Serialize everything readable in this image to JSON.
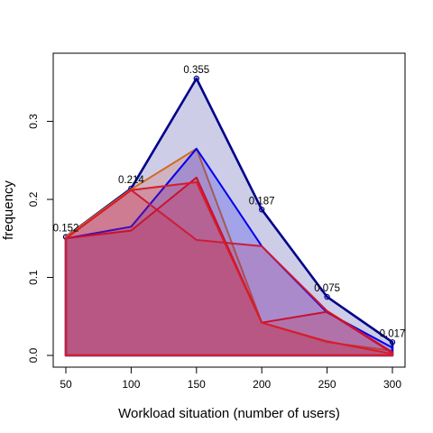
{
  "chart_data": {
    "type": "area",
    "title": "",
    "xlabel": "Workload situation (number of users)",
    "ylabel": "frequency",
    "xlim": [
      50,
      300
    ],
    "ylim": [
      0,
      0.355
    ],
    "x_ticks": [
      50,
      100,
      150,
      200,
      250,
      300
    ],
    "y_ticks": [
      0.0,
      0.1,
      0.2,
      0.3
    ],
    "y_tick_labels": [
      "0.0",
      "0.1",
      "0.2",
      "0.3"
    ],
    "grid": false,
    "legend": "none",
    "x": [
      50,
      100,
      150,
      200,
      250,
      300
    ],
    "series": [
      {
        "values": [
          0.152,
          0.214,
          0.355,
          0.187,
          0.075,
          0.017
        ],
        "labels": [
          "0.152",
          "0.214",
          "0.355",
          "0.187",
          "0.075",
          "0.017"
        ],
        "stroke": "#00008b",
        "fill": "rgba(90, 90, 175, 0.30)",
        "markers": true
      },
      {
        "values": [
          0.152,
          0.213,
          0.265,
          0.042,
          0.017,
          0.006
        ],
        "stroke": "#d2691e",
        "fill": "rgba(215, 105, 80, 0.25)",
        "markers": false
      },
      {
        "values": [
          0.15,
          0.165,
          0.265,
          0.14,
          0.055,
          0.01
        ],
        "stroke": "#0000ee",
        "fill": "rgba(40, 40, 245, 0.25)",
        "markers": false
      },
      {
        "values": [
          0.15,
          0.212,
          0.148,
          0.14,
          0.057,
          0.004
        ],
        "stroke": "#cd1a3a",
        "fill": "rgba(205, 30, 60, 0.18)",
        "markers": false
      },
      {
        "values": [
          0.15,
          0.16,
          0.228,
          0.042,
          0.056,
          0.003
        ],
        "stroke": "#c8102e",
        "fill": "rgba(205, 30, 60, 0.22)",
        "markers": false
      },
      {
        "values": [
          0.15,
          0.212,
          0.222,
          0.042,
          0.018,
          0.002
        ],
        "stroke": "#d81b2a",
        "fill": "rgba(205, 30, 60, 0.22)",
        "markers": false
      }
    ]
  }
}
